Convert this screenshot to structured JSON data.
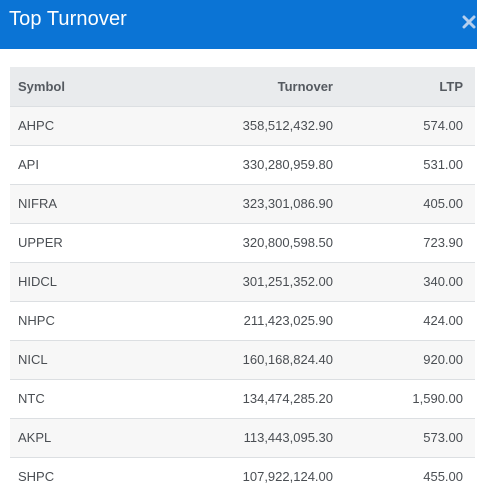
{
  "modal": {
    "title": "Top Turnover"
  },
  "table": {
    "headers": {
      "symbol": "Symbol",
      "turnover": "Turnover",
      "ltp": "LTP"
    },
    "rows": [
      {
        "symbol": "AHPC",
        "turnover": "358,512,432.90",
        "ltp": "574.00"
      },
      {
        "symbol": "API",
        "turnover": "330,280,959.80",
        "ltp": "531.00"
      },
      {
        "symbol": "NIFRA",
        "turnover": "323,301,086.90",
        "ltp": "405.00"
      },
      {
        "symbol": "UPPER",
        "turnover": "320,800,598.50",
        "ltp": "723.90"
      },
      {
        "symbol": "HIDCL",
        "turnover": "301,251,352.00",
        "ltp": "340.00"
      },
      {
        "symbol": "NHPC",
        "turnover": "211,423,025.90",
        "ltp": "424.00"
      },
      {
        "symbol": "NICL",
        "turnover": "160,168,824.40",
        "ltp": "920.00"
      },
      {
        "symbol": "NTC",
        "turnover": "134,474,285.20",
        "ltp": "1,590.00"
      },
      {
        "symbol": "AKPL",
        "turnover": "113,443,095.30",
        "ltp": "573.00"
      },
      {
        "symbol": "SHPC",
        "turnover": "107,922,124.00",
        "ltp": "455.00"
      }
    ]
  },
  "colors": {
    "header_bar": "#0b74d5",
    "table_header": "#e9ebed",
    "row_alt": "#f7f7f7"
  },
  "icons": {
    "close": "close-icon"
  }
}
